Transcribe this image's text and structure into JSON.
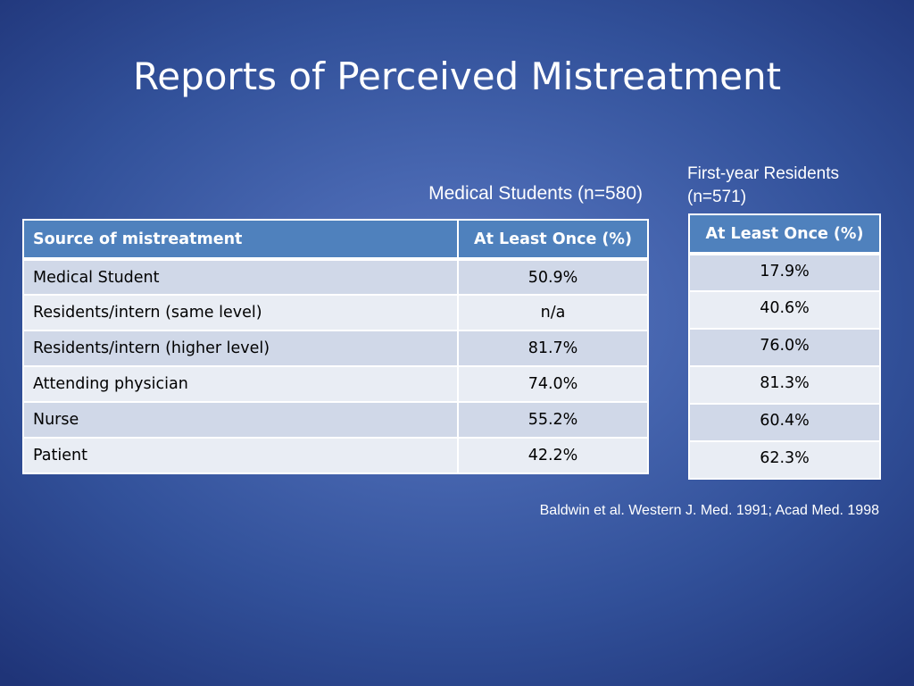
{
  "slide": {
    "title": "Reports of Perceived Mistreatment"
  },
  "students": {
    "caption": "Medical Students (n=580)",
    "headers": [
      "Source of mistreatment",
      "At Least Once (%)"
    ],
    "rows": [
      {
        "source": "Medical Student",
        "value": "50.9%"
      },
      {
        "source": "Residents/intern (same level)",
        "value": "n/a"
      },
      {
        "source": "Residents/intern (higher level)",
        "value": "81.7%"
      },
      {
        "source": "Attending physician",
        "value": "74.0%"
      },
      {
        "source": "Nurse",
        "value": "55.2%"
      },
      {
        "source": "Patient",
        "value": "42.2%"
      }
    ]
  },
  "residents": {
    "caption_line1": "First-year Residents",
    "caption_line2": "(n=571)",
    "header": "At Least Once (%)",
    "values": [
      "17.9%",
      "40.6%",
      "76.0%",
      "81.3%",
      "60.4%",
      "62.3%"
    ]
  },
  "citation": "Baldwin et al. Western J. Med. 1991; Acad Med. 1998",
  "colors": {
    "header_fill": "#4f81bd",
    "row_odd": "#d0d8e8",
    "row_even": "#e9edf4",
    "background": "#4766b0"
  }
}
